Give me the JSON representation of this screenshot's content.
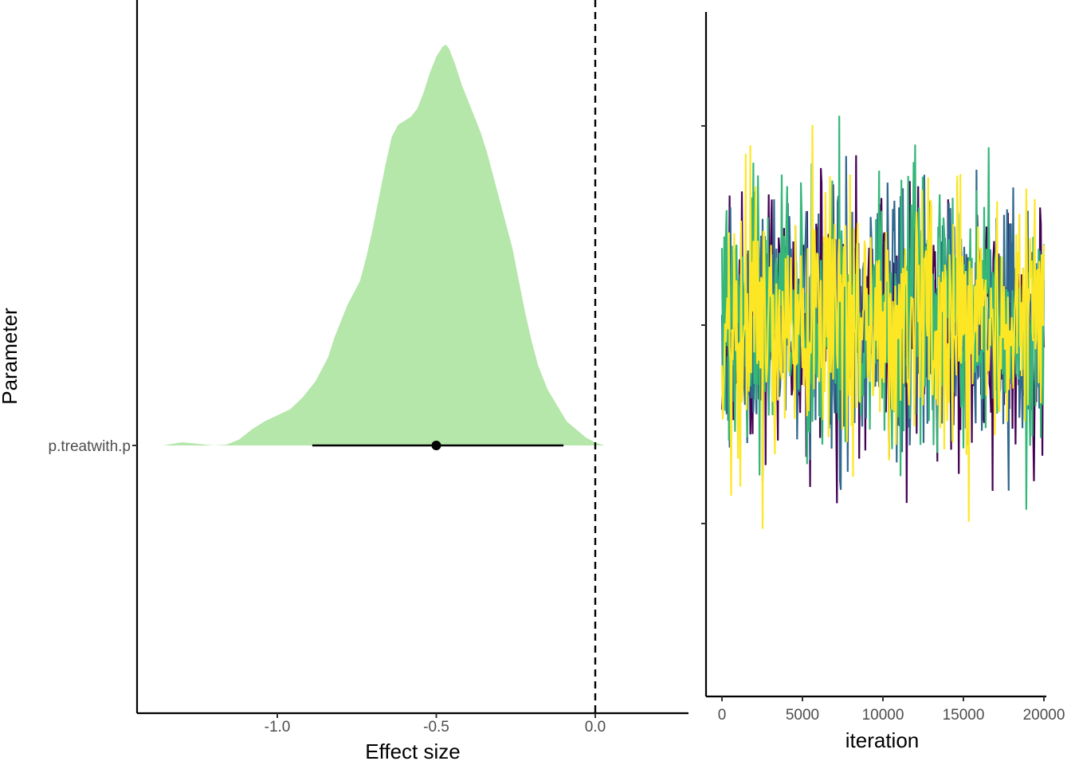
{
  "colors": {
    "density_fill": "#b5e6aa",
    "interval": "#000000",
    "reference_line": "#000000",
    "chains": [
      "#440154",
      "#31688e",
      "#35b779",
      "#fde725"
    ]
  },
  "chart_data": [
    {
      "type": "area",
      "title": "",
      "xlabel": "Effect size",
      "ylabel": "Parameter",
      "xlim": [
        -1.43,
        0.3
      ],
      "x_ticks": [
        -1.0,
        -0.5,
        0.0
      ],
      "x_tick_labels": [
        "-1.0",
        "-0.5",
        "0.0"
      ],
      "y_categories": [
        "p.treatwith.p"
      ],
      "reference_line": {
        "x": 0.0,
        "style": "dashed"
      },
      "grid": false,
      "legend": "none",
      "series": [
        {
          "x": [
            -1.36,
            -1.3,
            -1.26,
            -1.2,
            -1.14,
            -1.1,
            -1.05,
            -1.0,
            -0.95,
            -0.9,
            -0.87,
            -0.84,
            -0.82,
            -0.8,
            -0.78,
            -0.75,
            -0.73,
            -0.71,
            -0.69,
            -0.67,
            -0.65,
            -0.63,
            -0.61,
            -0.59,
            -0.57,
            -0.55,
            -0.53,
            -0.51,
            -0.5,
            -0.48,
            -0.46,
            -0.44,
            -0.42,
            -0.4,
            -0.38,
            -0.36,
            -0.34,
            -0.32,
            -0.3,
            -0.28,
            -0.26,
            -0.24,
            -0.22,
            -0.2,
            -0.17,
            -0.14,
            -0.11,
            -0.08,
            -0.05,
            -0.02,
            0.0,
            0.03,
            0.07,
            0.11,
            0.16,
            0.21,
            0.22
          ],
          "density": [
            0.0,
            0.008,
            0.005,
            0.002,
            0.008,
            0.025,
            0.05,
            0.075,
            0.1,
            0.14,
            0.19,
            0.25,
            0.31,
            0.36,
            0.4,
            0.44,
            0.5,
            0.56,
            0.63,
            0.71,
            0.77,
            0.8,
            0.815,
            0.82,
            0.83,
            0.86,
            0.92,
            0.96,
            0.985,
            1.0,
            0.99,
            0.96,
            0.9,
            0.85,
            0.8,
            0.74,
            0.68,
            0.61,
            0.55,
            0.48,
            0.39,
            0.31,
            0.24,
            0.18,
            0.13,
            0.09,
            0.05,
            0.02,
            0.006,
            0.0,
            0.0,
            0.0,
            0.0,
            0.0,
            0.0,
            0.0,
            0.0
          ],
          "lower_tail": [
            -1.36,
            -1.3,
            -1.26,
            -1.2,
            -1.14,
            -1.1,
            -1.05,
            -1.0,
            -0.95,
            -0.9,
            -0.87,
            -0.84,
            -0.82,
            -0.8,
            -0.78,
            -0.75,
            -0.73,
            -0.71,
            -0.69,
            -0.67,
            -0.65,
            -0.63,
            -0.61,
            -0.59,
            -0.57,
            -0.55,
            -0.53,
            -0.51,
            -0.5,
            -0.48,
            -0.46,
            -0.44,
            -0.42,
            -0.4,
            -0.38,
            -0.36,
            -0.34,
            -0.32,
            -0.3,
            -0.28,
            -0.26,
            -0.24,
            -0.22,
            -0.2,
            -0.17,
            -0.14,
            -0.11,
            -0.08,
            -0.05,
            -0.02,
            0.0,
            0.03,
            0.07,
            0.11,
            0.16,
            0.21,
            0.22
          ]
        }
      ],
      "density_x": [
        -1.36,
        -1.3,
        -1.26,
        -1.2,
        -1.16,
        -1.12,
        -1.08,
        -1.04,
        -1.0,
        -0.96,
        -0.92,
        -0.88,
        -0.84,
        -0.82,
        -0.8,
        -0.78,
        -0.76,
        -0.74,
        -0.72,
        -0.7,
        -0.68,
        -0.66,
        -0.64,
        -0.62,
        -0.6,
        -0.58,
        -0.56,
        -0.54,
        -0.52,
        -0.5,
        -0.48,
        -0.47,
        -0.46,
        -0.44,
        -0.42,
        -0.4,
        -0.38,
        -0.36,
        -0.34,
        -0.32,
        -0.3,
        -0.28,
        -0.26,
        -0.24,
        -0.22,
        -0.2,
        -0.18,
        -0.15,
        -0.12,
        -0.09,
        -0.06,
        -0.03,
        0.0,
        0.03,
        0.07,
        0.11,
        0.16,
        0.22
      ],
      "density_y": [
        0.0,
        0.008,
        0.005,
        0.0,
        0.002,
        0.015,
        0.04,
        0.06,
        0.075,
        0.09,
        0.12,
        0.16,
        0.22,
        0.27,
        0.31,
        0.35,
        0.38,
        0.41,
        0.47,
        0.54,
        0.62,
        0.7,
        0.77,
        0.8,
        0.81,
        0.82,
        0.84,
        0.88,
        0.93,
        0.97,
        0.995,
        1.0,
        0.99,
        0.95,
        0.9,
        0.86,
        0.82,
        0.78,
        0.73,
        0.67,
        0.61,
        0.55,
        0.49,
        0.41,
        0.33,
        0.26,
        0.2,
        0.14,
        0.1,
        0.06,
        0.04,
        0.02,
        0.007,
        0.0,
        0.0,
        0.0,
        0.0,
        0.0
      ],
      "point_estimate": -0.5,
      "interval": [
        -0.89,
        -0.1
      ]
    },
    {
      "type": "line",
      "title": "",
      "xlabel": "iteration",
      "ylabel": "",
      "xlim": [
        -500,
        20500
      ],
      "x_ticks": [
        0,
        5000,
        10000,
        15000,
        20000
      ],
      "x_tick_labels": [
        "0",
        "5000",
        "10000",
        "15000",
        "20000"
      ],
      "y_ticks_count": 3,
      "y_tick_labels": [],
      "n_chains": 4,
      "iterations": 20000,
      "grid": false,
      "legend": "none"
    }
  ]
}
